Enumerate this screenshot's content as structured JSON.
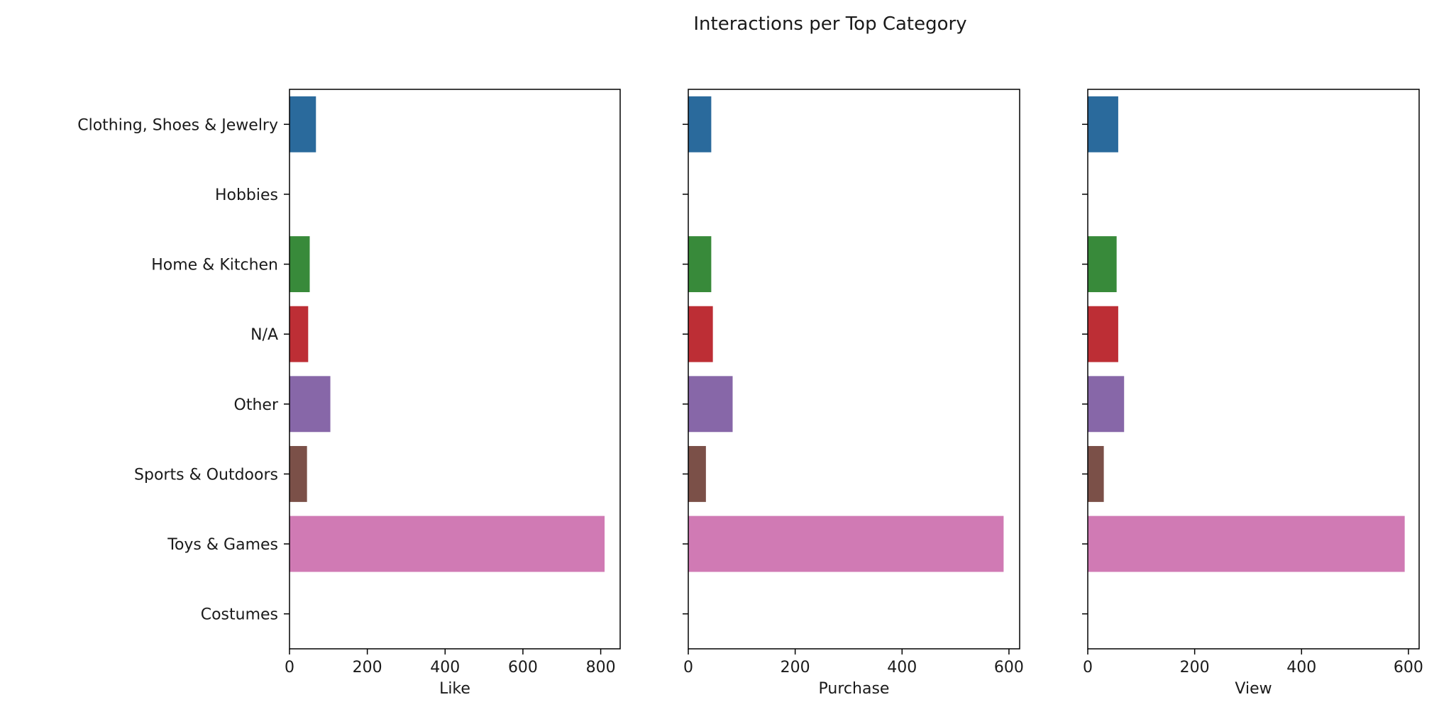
{
  "chart_data": {
    "type": "bar",
    "orientation": "horizontal",
    "title": "Interactions per Top Category",
    "categories": [
      "Clothing, Shoes & Jewelry",
      "Hobbies",
      "Home & Kitchen",
      "N/A",
      "Other",
      "Sports & Outdoors",
      "Toys & Games",
      "Costumes"
    ],
    "colors": [
      "#2a6a9c",
      "#d98530",
      "#388a3a",
      "#bd2e35",
      "#8767a8",
      "#7b5048",
      "#d07ab4",
      "#7f7f7f"
    ],
    "grid": false,
    "legend": "none",
    "panels": [
      {
        "xlabel": "Like",
        "xlim": [
          0,
          850
        ],
        "xticks": [
          0,
          200,
          400,
          600,
          800
        ],
        "values": [
          68,
          0,
          52,
          48,
          105,
          45,
          810,
          0
        ]
      },
      {
        "xlabel": "Purchase",
        "xlim": [
          0,
          620
        ],
        "xticks": [
          0,
          200,
          400,
          600
        ],
        "values": [
          43,
          0,
          43,
          46,
          83,
          33,
          590,
          0
        ]
      },
      {
        "xlabel": "View",
        "xlim": [
          0,
          620
        ],
        "xticks": [
          0,
          200,
          400,
          600
        ],
        "values": [
          57,
          0,
          54,
          57,
          68,
          30,
          593,
          0
        ]
      }
    ]
  }
}
